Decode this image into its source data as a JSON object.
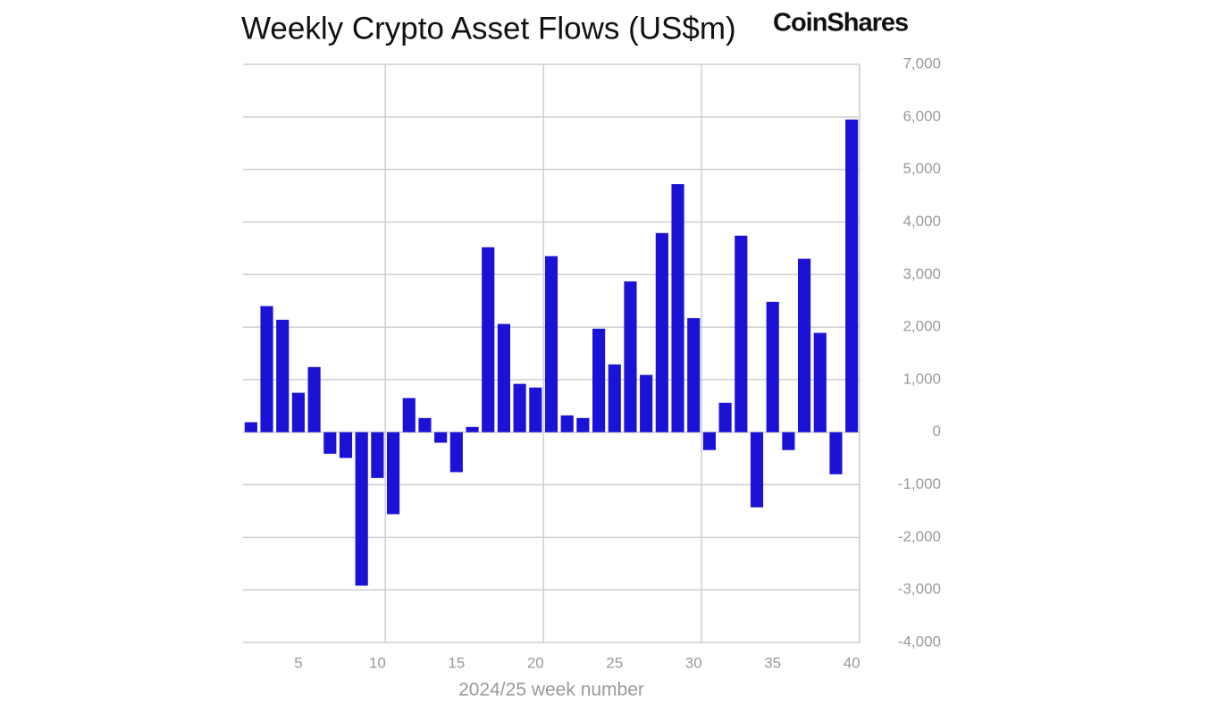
{
  "chart_data": {
    "type": "bar",
    "title": "Weekly Crypto Asset Flows (US$m)",
    "brand": "CoinShares",
    "x_label": "2024/25 week number",
    "x": [
      2,
      3,
      4,
      5,
      6,
      7,
      8,
      9,
      10,
      11,
      12,
      13,
      14,
      15,
      16,
      17,
      18,
      19,
      20,
      21,
      22,
      23,
      24,
      25,
      26,
      27,
      28,
      29,
      30,
      31,
      32,
      33,
      34,
      35,
      36,
      37,
      38,
      39,
      40
    ],
    "values": [
      190,
      2400,
      2140,
      750,
      1240,
      -410,
      -490,
      -2920,
      -870,
      -1560,
      650,
      270,
      -200,
      -760,
      100,
      3520,
      2060,
      920,
      850,
      3350,
      320,
      270,
      1970,
      1290,
      2870,
      1090,
      3790,
      4720,
      2170,
      -340,
      560,
      3740,
      -1430,
      2480,
      -340,
      3300,
      1890,
      -800,
      5950
    ],
    "color": "#1c12d6",
    "xlim": [
      1.5,
      40.5
    ],
    "xticks": [
      5,
      10,
      15,
      20,
      25,
      30,
      35,
      40
    ],
    "ylim": [
      -4000,
      7000
    ],
    "yticks": [
      {
        "value": -4000,
        "label": "-4,000"
      },
      {
        "value": -3000,
        "label": "-3,000"
      },
      {
        "value": -2000,
        "label": "-2,000"
      },
      {
        "value": -1000,
        "label": "-1,000"
      },
      0,
      {
        "value": 1000,
        "label": "1,000"
      },
      {
        "value": 2000,
        "label": "2,000"
      },
      {
        "value": 3000,
        "label": "3,000"
      },
      {
        "value": 4000,
        "label": "4,000"
      },
      {
        "value": 5000,
        "label": "5,000"
      },
      {
        "value": 6000,
        "label": "6,000"
      },
      {
        "value": 7000,
        "label": "7,000"
      }
    ],
    "grid": true,
    "y_axis_side": "right"
  }
}
